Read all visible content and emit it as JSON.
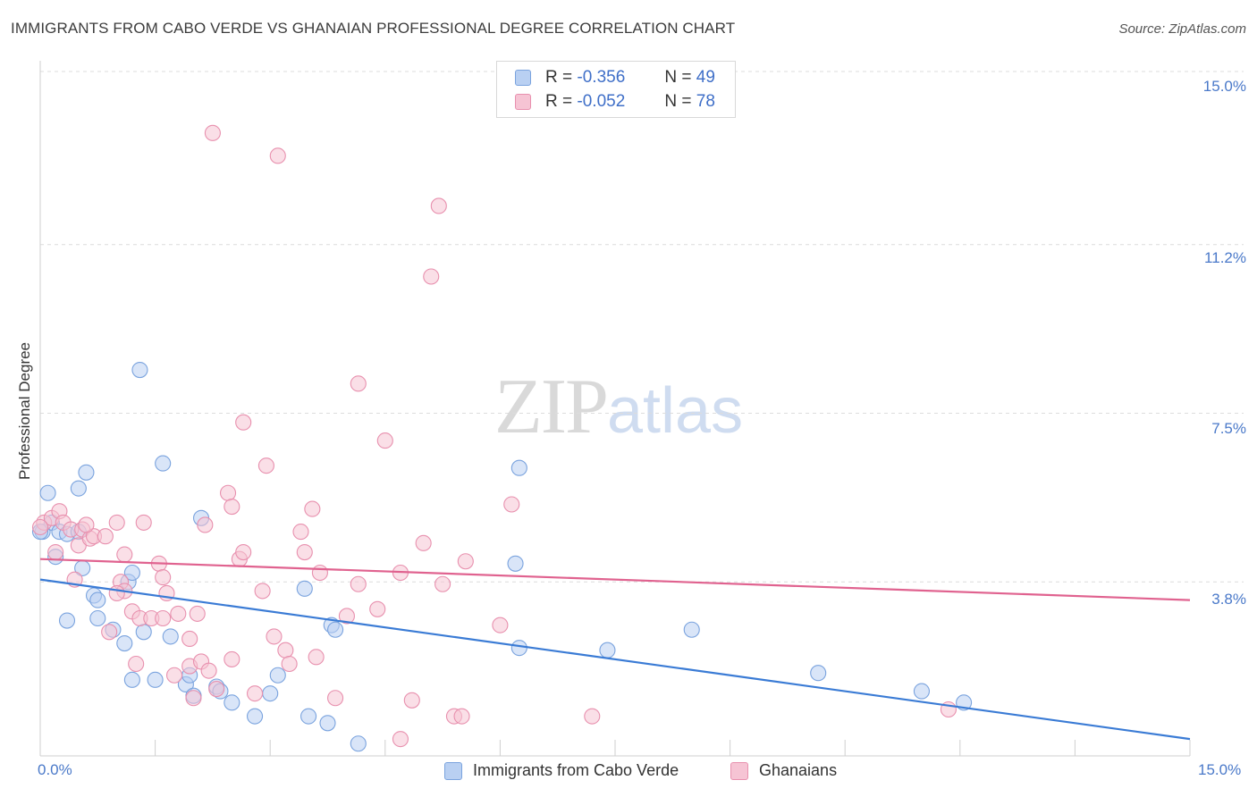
{
  "header": {
    "title": "IMMIGRANTS FROM CABO VERDE VS GHANAIAN PROFESSIONAL DEGREE CORRELATION CHART",
    "source": "Source: ZipAtlas.com"
  },
  "watermark": {
    "zip": "ZIP",
    "atlas": "atlas"
  },
  "legend_top": {
    "rows": [
      {
        "r_label": "R =",
        "r_value": "-0.356",
        "n_label": "N =",
        "n_value": "49"
      },
      {
        "r_label": "R =",
        "r_value": "-0.052",
        "n_label": "N =",
        "n_value": "78"
      }
    ]
  },
  "legend_bottom": {
    "items": [
      {
        "label": "Immigrants from Cabo Verde"
      },
      {
        "label": "Ghanaians"
      }
    ]
  },
  "colors": {
    "blue_fill": "#b9d0f2",
    "blue_stroke": "#7aa3de",
    "blue_line": "#3a7bd5",
    "pink_fill": "#f6c4d4",
    "pink_stroke": "#e890ae",
    "pink_line": "#e0628f",
    "grid": "#dcdcdc",
    "tick_text": "#4a79c9"
  },
  "chart_data": {
    "type": "scatter",
    "title": "IMMIGRANTS FROM CABO VERDE VS GHANAIAN PROFESSIONAL DEGREE CORRELATION CHART",
    "xlabel": "",
    "ylabel": "Professional Degree",
    "xlim": [
      0,
      15
    ],
    "ylim": [
      0,
      15
    ],
    "x_tick_labels": [
      "0.0%",
      "15.0%"
    ],
    "y_tick_labels": [
      "3.8%",
      "7.5%",
      "11.2%",
      "15.0%"
    ],
    "y_ticks": [
      3.8,
      7.5,
      11.2,
      15.0
    ],
    "grid": true,
    "legend_position": "top-center",
    "series": [
      {
        "name": "Immigrants from Cabo Verde",
        "R": -0.356,
        "N": 49,
        "trend": {
          "x": [
            0,
            15
          ],
          "y": [
            3.85,
            0.35
          ]
        },
        "points": [
          [
            0.03,
            4.9
          ],
          [
            0.1,
            5.75
          ],
          [
            0.15,
            5.1
          ],
          [
            0.2,
            4.35
          ],
          [
            0.25,
            4.9
          ],
          [
            0.35,
            4.85
          ],
          [
            0.5,
            4.9
          ],
          [
            0.5,
            5.85
          ],
          [
            0.6,
            6.2
          ],
          [
            0.55,
            4.1
          ],
          [
            0.7,
            3.5
          ],
          [
            0.75,
            3.4
          ],
          [
            0.35,
            2.95
          ],
          [
            0.75,
            3.0
          ],
          [
            0.95,
            2.75
          ],
          [
            1.1,
            2.45
          ],
          [
            1.3,
            8.45
          ],
          [
            1.35,
            2.7
          ],
          [
            1.2,
            1.65
          ],
          [
            1.5,
            1.65
          ],
          [
            1.15,
            3.8
          ],
          [
            1.2,
            4.0
          ],
          [
            1.6,
            6.4
          ],
          [
            1.7,
            2.6
          ],
          [
            1.9,
            1.55
          ],
          [
            1.95,
            1.75
          ],
          [
            2.0,
            1.3
          ],
          [
            2.1,
            5.2
          ],
          [
            2.3,
            1.5
          ],
          [
            2.35,
            1.4
          ],
          [
            2.5,
            1.15
          ],
          [
            2.8,
            0.85
          ],
          [
            3.0,
            1.35
          ],
          [
            3.1,
            1.75
          ],
          [
            3.45,
            3.65
          ],
          [
            3.5,
            0.85
          ],
          [
            3.8,
            2.85
          ],
          [
            3.85,
            2.75
          ],
          [
            3.75,
            0.7
          ],
          [
            4.15,
            0.25
          ],
          [
            6.25,
            6.3
          ],
          [
            6.2,
            4.2
          ],
          [
            6.25,
            2.35
          ],
          [
            7.4,
            2.3
          ],
          [
            8.5,
            2.75
          ],
          [
            10.15,
            1.8
          ],
          [
            11.5,
            1.4
          ],
          [
            12.05,
            1.15
          ],
          [
            0.0,
            4.9
          ]
        ]
      },
      {
        "name": "Ghanaians",
        "R": -0.052,
        "N": 78,
        "trend": {
          "x": [
            0,
            15
          ],
          "y": [
            4.3,
            3.4
          ]
        },
        "points": [
          [
            0.05,
            5.1
          ],
          [
            0.15,
            5.2
          ],
          [
            0.25,
            5.35
          ],
          [
            0.3,
            5.1
          ],
          [
            0.4,
            4.95
          ],
          [
            0.45,
            3.85
          ],
          [
            0.5,
            4.6
          ],
          [
            0.55,
            4.95
          ],
          [
            0.65,
            4.75
          ],
          [
            0.7,
            4.8
          ],
          [
            0.85,
            4.8
          ],
          [
            0.9,
            2.7
          ],
          [
            1.0,
            5.1
          ],
          [
            1.05,
            3.8
          ],
          [
            1.1,
            3.6
          ],
          [
            1.1,
            4.4
          ],
          [
            1.2,
            3.15
          ],
          [
            1.25,
            2.0
          ],
          [
            1.3,
            3.0
          ],
          [
            1.35,
            5.1
          ],
          [
            1.45,
            3.0
          ],
          [
            1.55,
            4.2
          ],
          [
            1.6,
            3.9
          ],
          [
            1.6,
            3.0
          ],
          [
            1.65,
            3.55
          ],
          [
            1.75,
            1.75
          ],
          [
            1.8,
            3.1
          ],
          [
            1.95,
            2.55
          ],
          [
            1.95,
            1.95
          ],
          [
            2.05,
            3.1
          ],
          [
            2.1,
            2.05
          ],
          [
            2.15,
            5.05
          ],
          [
            2.2,
            1.85
          ],
          [
            2.3,
            1.45
          ],
          [
            2.25,
            13.65
          ],
          [
            2.45,
            5.75
          ],
          [
            2.5,
            2.1
          ],
          [
            2.5,
            5.45
          ],
          [
            2.6,
            4.3
          ],
          [
            2.65,
            4.45
          ],
          [
            2.65,
            7.3
          ],
          [
            2.8,
            1.35
          ],
          [
            2.9,
            3.6
          ],
          [
            2.95,
            6.35
          ],
          [
            3.05,
            2.6
          ],
          [
            3.1,
            13.15
          ],
          [
            3.2,
            2.3
          ],
          [
            3.25,
            2.0
          ],
          [
            3.4,
            4.9
          ],
          [
            3.45,
            4.45
          ],
          [
            3.55,
            5.4
          ],
          [
            3.6,
            2.15
          ],
          [
            3.65,
            4.0
          ],
          [
            3.85,
            1.25
          ],
          [
            4.0,
            3.05
          ],
          [
            4.15,
            3.75
          ],
          [
            4.15,
            8.15
          ],
          [
            4.4,
            3.2
          ],
          [
            4.5,
            6.9
          ],
          [
            4.7,
            0.35
          ],
          [
            4.7,
            4.0
          ],
          [
            4.85,
            1.2
          ],
          [
            5.0,
            4.65
          ],
          [
            5.1,
            10.5
          ],
          [
            5.2,
            12.05
          ],
          [
            5.25,
            3.75
          ],
          [
            5.4,
            0.85
          ],
          [
            5.5,
            0.85
          ],
          [
            5.55,
            4.25
          ],
          [
            6.0,
            2.85
          ],
          [
            6.15,
            5.5
          ],
          [
            7.2,
            0.85
          ],
          [
            11.85,
            1.0
          ],
          [
            0.0,
            5.0
          ],
          [
            0.2,
            4.45
          ],
          [
            0.6,
            5.05
          ],
          [
            1.0,
            3.55
          ],
          [
            2.0,
            1.25
          ]
        ]
      }
    ]
  }
}
